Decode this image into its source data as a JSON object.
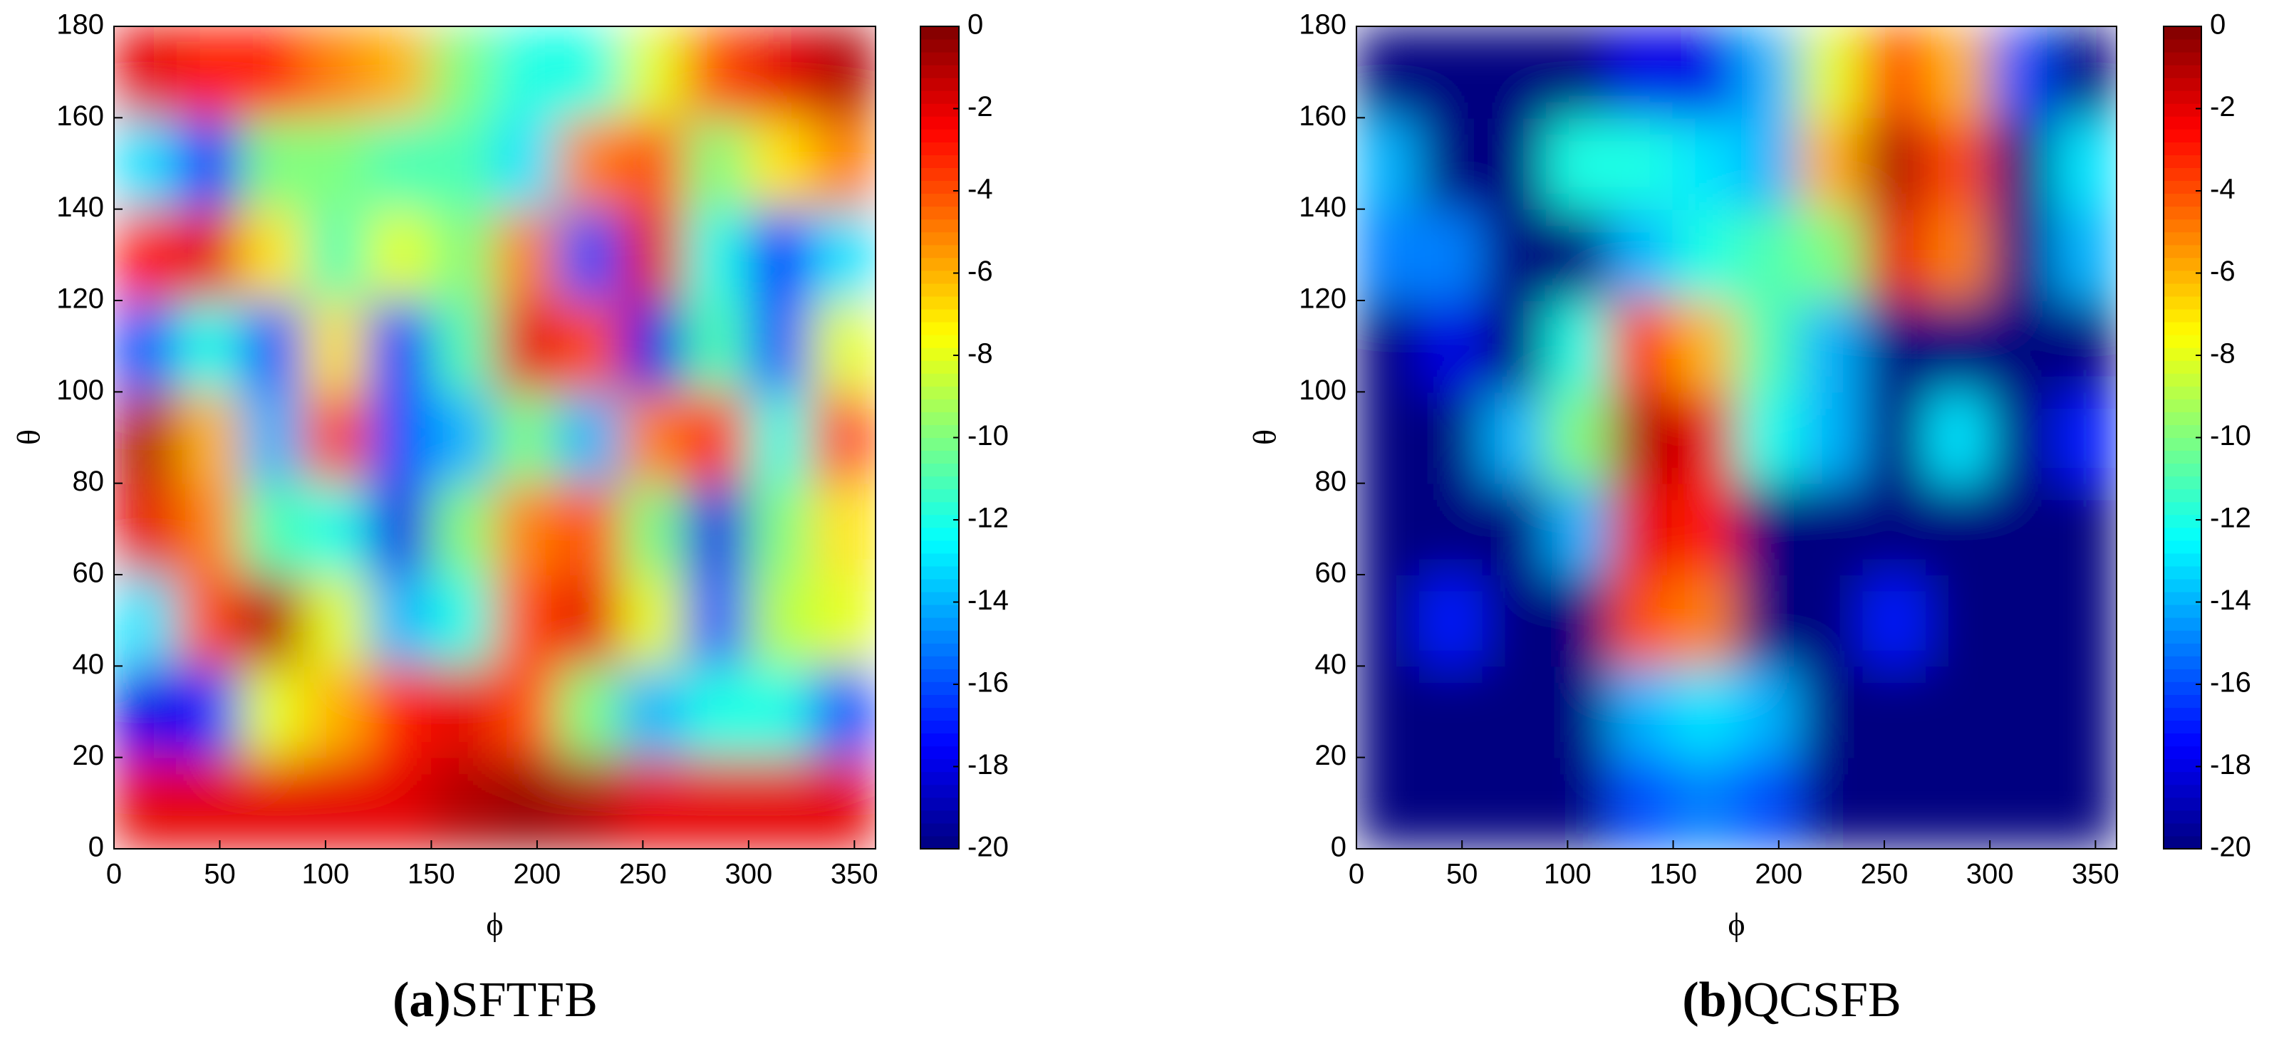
{
  "chart_data": [
    {
      "type": "heatmap",
      "colormap": "jet",
      "caption_label": "(a)",
      "caption": "SFTFB",
      "xlabel": "ϕ",
      "ylabel": "θ",
      "xlim": [
        0,
        360
      ],
      "ylim": [
        0,
        180
      ],
      "xticks": [
        0,
        50,
        100,
        150,
        200,
        250,
        300,
        350
      ],
      "yticks": [
        0,
        20,
        40,
        60,
        80,
        100,
        120,
        140,
        160,
        180
      ],
      "clim": [
        -20,
        0
      ],
      "cticks": [
        0,
        -2,
        -4,
        -6,
        -8,
        -10,
        -12,
        -14,
        -16,
        -18,
        -20
      ],
      "x": [
        15,
        45,
        75,
        105,
        135,
        165,
        195,
        225,
        255,
        285,
        315,
        345
      ],
      "y": [
        10,
        30,
        50,
        70,
        90,
        110,
        130,
        150,
        170
      ],
      "z": [
        [
          -2,
          -2,
          -2,
          -2,
          -2,
          -1,
          -0.5,
          -1,
          -2,
          -2,
          -2,
          -2
        ],
        [
          -18,
          -17,
          -8,
          -6,
          -3,
          -2,
          -4,
          -10,
          -14,
          -12,
          -12,
          -16
        ],
        [
          -13,
          -4,
          -1,
          -8,
          -14,
          -12,
          -4,
          -2,
          -8,
          -16,
          -9,
          -8
        ],
        [
          -2,
          -5,
          -11,
          -12,
          -18,
          -10,
          -5,
          -4,
          -10,
          -18,
          -10,
          -7
        ],
        [
          -1,
          -6,
          -14,
          -4,
          -16,
          -14,
          -10,
          -14,
          -5,
          -3,
          -12,
          -4
        ],
        [
          -16,
          -12,
          -16,
          -7,
          -17,
          -11,
          -2,
          -4,
          -18,
          -11,
          -16,
          -8
        ],
        [
          -3,
          -2,
          -7,
          -11,
          -8,
          -10,
          -5,
          -16,
          -2,
          -12,
          -17,
          -13
        ],
        [
          -13,
          -17,
          -10,
          -10,
          -11,
          -11,
          -13,
          -5,
          -4,
          -10,
          -7,
          -5
        ],
        [
          -2,
          -3,
          -3,
          -5,
          -6,
          -10,
          -12,
          -12,
          -8,
          -4,
          -2,
          -1
        ]
      ]
    },
    {
      "type": "heatmap",
      "colormap": "jet",
      "caption_label": "(b)",
      "caption": "QCSFB",
      "xlabel": "ϕ",
      "ylabel": "θ",
      "xlim": [
        0,
        360
      ],
      "ylim": [
        0,
        180
      ],
      "xticks": [
        0,
        50,
        100,
        150,
        200,
        250,
        300,
        350
      ],
      "yticks": [
        0,
        20,
        40,
        60,
        80,
        100,
        120,
        140,
        160,
        180
      ],
      "clim": [
        -20,
        0
      ],
      "cticks": [
        0,
        -2,
        -4,
        -6,
        -8,
        -10,
        -12,
        -14,
        -16,
        -18,
        -20
      ],
      "x": [
        15,
        45,
        75,
        105,
        135,
        165,
        195,
        225,
        255,
        285,
        315,
        345
      ],
      "y": [
        10,
        30,
        50,
        70,
        90,
        110,
        130,
        150,
        170
      ],
      "z": [
        [
          -20,
          -20,
          -20,
          -20,
          -16,
          -15,
          -16,
          -20,
          -20,
          -20,
          -20,
          -20
        ],
        [
          -20,
          -20,
          -20,
          -20,
          -14,
          -13,
          -14,
          -20,
          -20,
          -20,
          -20,
          -20
        ],
        [
          -20,
          -17,
          -20,
          -20,
          -4,
          -5,
          -20,
          -20,
          -17,
          -20,
          -20,
          -20
        ],
        [
          -20,
          -20,
          -20,
          -14,
          -2,
          -3,
          -20,
          -20,
          -20,
          -20,
          -20,
          -20
        ],
        [
          -20,
          -20,
          -14,
          -10,
          -1,
          -2,
          -12,
          -14,
          -20,
          -13,
          -20,
          -17
        ],
        [
          -20,
          -18,
          -20,
          -12,
          -3,
          -6,
          -11,
          -14,
          -20,
          -20,
          -20,
          -20
        ],
        [
          -15,
          -15,
          -20,
          -20,
          -14,
          -12,
          -11,
          -10,
          -2,
          -5,
          -20,
          -14
        ],
        [
          -14,
          -20,
          -20,
          -12,
          -12,
          -13,
          -14,
          -6,
          -1,
          -4,
          -20,
          -13
        ],
        [
          -20,
          -20,
          -20,
          -20,
          -18,
          -18,
          -14,
          -8,
          -4,
          -6,
          -16,
          -20
        ]
      ]
    }
  ]
}
